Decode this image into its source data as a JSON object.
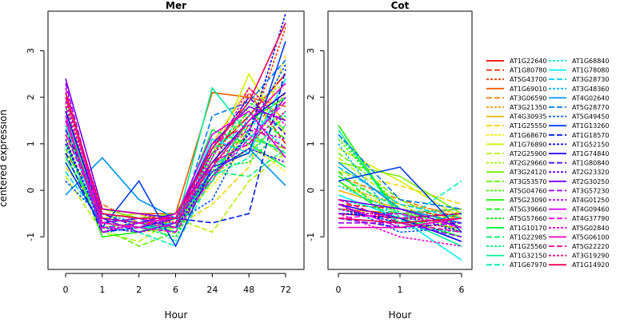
{
  "chart_data": {
    "type": "line",
    "ylabel": "centered expression",
    "ylim": [
      -1.7,
      3.85
    ],
    "yticks": [
      -1,
      0,
      1,
      2,
      3
    ],
    "panels": [
      {
        "title": "Mer",
        "xlabel": "Hour",
        "x": [
          "0",
          "1",
          "2",
          "6",
          "24",
          "48",
          "72"
        ],
        "series": [
          {
            "name": "AT1G22640",
            "values": [
              2.0,
              -0.5,
              -0.6,
              -0.5,
              0.8,
              1.6,
              2.5
            ]
          },
          {
            "name": "AT1G80780",
            "values": [
              1.8,
              -0.7,
              -0.8,
              -0.6,
              0.5,
              2.1,
              1.0
            ]
          },
          {
            "name": "AT5G43700",
            "values": [
              1.5,
              -0.9,
              -0.8,
              -0.9,
              0.6,
              1.2,
              3.5
            ]
          },
          {
            "name": "AT1G69010",
            "values": [
              1.2,
              -0.4,
              -0.5,
              -0.5,
              2.1,
              2.0,
              1.8
            ]
          },
          {
            "name": "AT3G06590",
            "values": [
              0.8,
              -0.3,
              -0.7,
              -0.7,
              0.2,
              1.4,
              1.9
            ]
          },
          {
            "name": "AT3G21350",
            "values": [
              1.4,
              -0.6,
              -0.9,
              -0.8,
              0.3,
              0.9,
              2.1
            ]
          },
          {
            "name": "AT4G30935",
            "values": [
              2.1,
              -0.8,
              -0.7,
              -0.6,
              1.0,
              2.2,
              1.5
            ]
          },
          {
            "name": "AT1G25550",
            "values": [
              0.5,
              -0.5,
              -0.6,
              -0.8,
              -0.3,
              0.5,
              2.9
            ]
          },
          {
            "name": "AT1G68670",
            "values": [
              1.0,
              -0.7,
              -0.8,
              -0.7,
              0.1,
              1.0,
              0.4
            ]
          },
          {
            "name": "AT1G76890",
            "values": [
              1.6,
              -0.6,
              -0.5,
              -0.9,
              0.7,
              2.5,
              1.2
            ]
          },
          {
            "name": "AT2G25900",
            "values": [
              0.3,
              -0.9,
              -1.1,
              -0.6,
              -0.9,
              0.2,
              0.8
            ]
          },
          {
            "name": "AT2G29660",
            "values": [
              1.9,
              -0.6,
              -0.7,
              -0.8,
              0.4,
              1.8,
              2.3
            ]
          },
          {
            "name": "AT3G24120",
            "values": [
              1.3,
              -0.4,
              -0.6,
              -0.5,
              0.9,
              1.1,
              0.9
            ]
          },
          {
            "name": "AT3G53570",
            "values": [
              0.6,
              -0.8,
              -1.2,
              -0.9,
              0.2,
              1.3,
              0.7
            ]
          },
          {
            "name": "AT5G04760",
            "values": [
              1.7,
              -0.5,
              -0.8,
              -0.7,
              0.6,
              0.8,
              1.6
            ]
          },
          {
            "name": "AT5G23090",
            "values": [
              1.1,
              -1.0,
              -0.9,
              -0.6,
              0.3,
              1.5,
              2.0
            ]
          },
          {
            "name": "AT5G39660",
            "values": [
              0.9,
              -0.7,
              -0.6,
              -0.8,
              0.8,
              1.7,
              1.1
            ]
          },
          {
            "name": "AT5G57660",
            "values": [
              1.5,
              -0.8,
              -0.8,
              -1.0,
              0.5,
              0.6,
              1.4
            ]
          },
          {
            "name": "AT1G10170",
            "values": [
              0.7,
              -0.6,
              -0.9,
              -0.7,
              1.3,
              1.0,
              0.5
            ]
          },
          {
            "name": "AT1G22985",
            "values": [
              1.8,
              -0.9,
              -0.7,
              -0.9,
              0.4,
              0.3,
              0.9
            ]
          },
          {
            "name": "AT1G25560",
            "values": [
              1.3,
              -0.5,
              -0.6,
              -1.1,
              0.7,
              1.9,
              1.3
            ]
          },
          {
            "name": "AT1G32150",
            "values": [
              1.6,
              -0.7,
              -0.8,
              -0.8,
              2.2,
              1.2,
              0.8
            ]
          },
          {
            "name": "AT1G67970",
            "values": [
              1.0,
              -0.8,
              -0.9,
              -1.2,
              0.3,
              0.7,
              1.7
            ]
          },
          {
            "name": "AT1G68840",
            "values": [
              1.9,
              -0.6,
              -0.7,
              -0.9,
              0.9,
              1.4,
              1.6
            ]
          },
          {
            "name": "AT1G78080",
            "values": [
              1.4,
              -0.9,
              -0.8,
              -0.7,
              1.1,
              0.8,
              2.4
            ]
          },
          {
            "name": "AT3G28730",
            "values": [
              0.4,
              -0.7,
              -0.6,
              -0.8,
              0.5,
              1.1,
              2.0
            ]
          },
          {
            "name": "AT3G48360",
            "values": [
              1.2,
              -0.5,
              -0.7,
              -0.6,
              0.2,
              1.6,
              0.9
            ]
          },
          {
            "name": "AT4G02640",
            "values": [
              -0.1,
              0.7,
              -0.2,
              -0.6,
              0.4,
              0.9,
              0.1
            ]
          },
          {
            "name": "AT5G28770",
            "values": [
              1.5,
              -0.8,
              -0.7,
              -0.9,
              1.6,
              1.9,
              2.8
            ]
          },
          {
            "name": "AT5G49450",
            "values": [
              0.2,
              -0.6,
              -0.9,
              -0.7,
              -0.2,
              1.3,
              2.7
            ]
          },
          {
            "name": "AT1G13260",
            "values": [
              0.6,
              -0.8,
              0.2,
              -1.2,
              0.5,
              0.8,
              3.2
            ]
          },
          {
            "name": "AT1G18570",
            "values": [
              0.8,
              -0.9,
              -0.8,
              -0.6,
              -0.7,
              -0.5,
              2.6
            ]
          },
          {
            "name": "AT1G52150",
            "values": [
              1.0,
              -0.7,
              -0.6,
              -0.8,
              0.3,
              1.2,
              3.8
            ]
          },
          {
            "name": "AT1G74840",
            "values": [
              1.7,
              -0.6,
              -0.7,
              -0.5,
              0.6,
              1.5,
              2.1
            ]
          },
          {
            "name": "AT1G80840",
            "values": [
              1.3,
              -0.5,
              -0.8,
              -0.6,
              0.9,
              2.0,
              1.2
            ]
          },
          {
            "name": "AT2G23320",
            "values": [
              1.1,
              -0.8,
              -0.9,
              -0.7,
              0.4,
              0.9,
              0.6
            ]
          },
          {
            "name": "AT2G30250",
            "values": [
              2.4,
              -0.4,
              -0.5,
              -0.6,
              1.0,
              1.8,
              1.5
            ]
          },
          {
            "name": "AT3G57230",
            "values": [
              2.3,
              -0.7,
              -0.6,
              -0.8,
              0.6,
              1.0,
              2.0
            ]
          },
          {
            "name": "AT4G01250",
            "values": [
              2.0,
              -0.6,
              -0.9,
              -0.7,
              0.8,
              1.3,
              1.1
            ]
          },
          {
            "name": "AT4G09460",
            "values": [
              1.6,
              -0.9,
              -0.7,
              -0.6,
              1.2,
              1.7,
              0.7
            ]
          },
          {
            "name": "AT4G37790",
            "values": [
              2.2,
              -0.8,
              -0.8,
              -0.9,
              0.3,
              1.1,
              1.9
            ]
          },
          {
            "name": "AT5G02840",
            "values": [
              1.8,
              -0.5,
              -0.6,
              -0.7,
              0.7,
              2.2,
              1.4
            ]
          },
          {
            "name": "AT5G06100",
            "values": [
              1.5,
              -0.7,
              -0.8,
              -0.5,
              0.5,
              1.5,
              2.3
            ]
          },
          {
            "name": "AT5G22220",
            "values": [
              1.2,
              -0.6,
              -0.7,
              -0.8,
              1.0,
              1.4,
              0.9
            ]
          },
          {
            "name": "AT3G19290",
            "values": [
              1.9,
              -0.4,
              -0.5,
              -0.7,
              0.6,
              1.0,
              1.7
            ]
          },
          {
            "name": "AT1G14920",
            "values": [
              2.1,
              -0.5,
              -0.6,
              -0.6,
              0.9,
              1.9,
              3.6
            ]
          }
        ]
      },
      {
        "title": "Cot",
        "xlabel": "Hour",
        "x": [
          "0",
          "1",
          "6"
        ],
        "series": [
          {
            "name": "AT1G22640",
            "values": [
              -0.5,
              -0.6,
              -0.5
            ]
          },
          {
            "name": "AT1G80780",
            "values": [
              -0.3,
              -0.4,
              -0.6
            ]
          },
          {
            "name": "AT5G43700",
            "values": [
              -0.6,
              -0.7,
              -0.8
            ]
          },
          {
            "name": "AT1G69010",
            "values": [
              -0.4,
              -0.5,
              -0.4
            ]
          },
          {
            "name": "AT3G06590",
            "values": [
              0.3,
              -0.2,
              -0.6
            ]
          },
          {
            "name": "AT3G21350",
            "values": [
              0.1,
              -0.3,
              -0.5
            ]
          },
          {
            "name": "AT4G30935",
            "values": [
              0.0,
              -0.4,
              -0.7
            ]
          },
          {
            "name": "AT1G25550",
            "values": [
              0.4,
              0.1,
              -0.3
            ]
          },
          {
            "name": "AT1G68670",
            "values": [
              0.2,
              -0.5,
              -0.6
            ]
          },
          {
            "name": "AT1G76890",
            "values": [
              0.9,
              0.2,
              -0.6
            ]
          },
          {
            "name": "AT2G25900",
            "values": [
              0.7,
              -0.3,
              -0.9
            ]
          },
          {
            "name": "AT2G29660",
            "values": [
              0.5,
              -0.6,
              -0.7
            ]
          },
          {
            "name": "AT3G24120",
            "values": [
              0.6,
              0.3,
              -0.5
            ]
          },
          {
            "name": "AT3G53570",
            "values": [
              0.8,
              -0.2,
              -0.8
            ]
          },
          {
            "name": "AT5G04760",
            "values": [
              1.1,
              -0.4,
              -0.9
            ]
          },
          {
            "name": "AT5G23090",
            "values": [
              1.4,
              -0.6,
              -1.0
            ]
          },
          {
            "name": "AT5G39660",
            "values": [
              0.4,
              -0.8,
              -0.5
            ]
          },
          {
            "name": "AT5G57660",
            "values": [
              1.2,
              -0.5,
              -0.7
            ]
          },
          {
            "name": "AT1G10170",
            "values": [
              0.2,
              -0.7,
              -0.6
            ]
          },
          {
            "name": "AT1G22985",
            "values": [
              0.3,
              -0.4,
              -0.8
            ]
          },
          {
            "name": "AT1G25560",
            "values": [
              -0.2,
              -0.5,
              -0.4
            ]
          },
          {
            "name": "AT1G32150",
            "values": [
              1.3,
              -0.6,
              -1.2
            ]
          },
          {
            "name": "AT1G67970",
            "values": [
              -0.4,
              -0.7,
              0.2
            ]
          },
          {
            "name": "AT1G68840",
            "values": [
              0.1,
              -0.5,
              -1.1
            ]
          },
          {
            "name": "AT1G78080",
            "values": [
              -0.1,
              -0.6,
              -1.5
            ]
          },
          {
            "name": "AT3G28730",
            "values": [
              0.5,
              -0.3,
              -0.6
            ]
          },
          {
            "name": "AT3G48360",
            "values": [
              1.0,
              -0.8,
              -0.9
            ]
          },
          {
            "name": "AT4G02640",
            "values": [
              0.6,
              -0.4,
              -0.7
            ]
          },
          {
            "name": "AT5G28770",
            "values": [
              1.2,
              -0.2,
              -0.4
            ]
          },
          {
            "name": "AT5G49450",
            "values": [
              -0.3,
              -0.9,
              -0.8
            ]
          },
          {
            "name": "AT1G13260",
            "values": [
              0.2,
              0.5,
              -0.9
            ]
          },
          {
            "name": "AT1G18570",
            "values": [
              -0.5,
              -0.6,
              -0.5
            ]
          },
          {
            "name": "AT1G52150",
            "values": [
              -0.4,
              -0.7,
              -0.6
            ]
          },
          {
            "name": "AT1G74840",
            "values": [
              -0.3,
              -0.6,
              -1.1
            ]
          },
          {
            "name": "AT1G80840",
            "values": [
              -0.6,
              -0.8,
              -0.7
            ]
          },
          {
            "name": "AT2G23320",
            "values": [
              -0.5,
              -0.5,
              -0.9
            ]
          },
          {
            "name": "AT2G30250",
            "values": [
              -0.2,
              -0.4,
              -0.8
            ]
          },
          {
            "name": "AT3G57230",
            "values": [
              -0.7,
              -0.7,
              -1.0
            ]
          },
          {
            "name": "AT4G01250",
            "values": [
              -0.4,
              -0.6,
              -0.7
            ]
          },
          {
            "name": "AT4G09460",
            "values": [
              -0.3,
              -0.8,
              -0.6
            ]
          },
          {
            "name": "AT4G37790",
            "values": [
              -0.6,
              -0.5,
              -0.8
            ]
          },
          {
            "name": "AT5G02840",
            "values": [
              -0.5,
              -1.0,
              -1.2
            ]
          },
          {
            "name": "AT5G06100",
            "values": [
              -0.8,
              -0.8,
              -0.6
            ]
          },
          {
            "name": "AT5G22220",
            "values": [
              -0.2,
              -0.7,
              -0.9
            ]
          },
          {
            "name": "AT3G19290",
            "values": [
              -0.4,
              -0.6,
              -0.5
            ]
          },
          {
            "name": "AT1G14920",
            "values": [
              -0.6,
              -0.7,
              -0.6
            ]
          }
        ]
      }
    ],
    "legend": {
      "placement": "right",
      "columns": [
        [
          "AT1G22640",
          "AT1G80780",
          "AT5G43700",
          "AT1G69010",
          "AT3G06590",
          "AT3G21350",
          "AT4G30935",
          "AT1G25550",
          "AT1G68670",
          "AT1G76890",
          "AT2G25900",
          "AT2G29660",
          "AT3G24120",
          "AT3G53570",
          "AT5G04760",
          "AT5G23090",
          "AT5G39660",
          "AT5G57660",
          "AT1G10170",
          "AT1G22985",
          "AT1G25560",
          "AT1G32150",
          "AT1G67970"
        ],
        [
          "AT1G68840",
          "AT1G78080",
          "AT3G28730",
          "AT3G48360",
          "AT4G02640",
          "AT5G28770",
          "AT5G49450",
          "AT1G13260",
          "AT1G18570",
          "AT1G52150",
          "AT1G74840",
          "AT1G80840",
          "AT2G23320",
          "AT2G30250",
          "AT3G57230",
          "AT4G01250",
          "AT4G09460",
          "AT4G37790",
          "AT5G02840",
          "AT5G06100",
          "AT5G22220",
          "AT3G19290",
          "AT1G14920"
        ]
      ]
    }
  }
}
